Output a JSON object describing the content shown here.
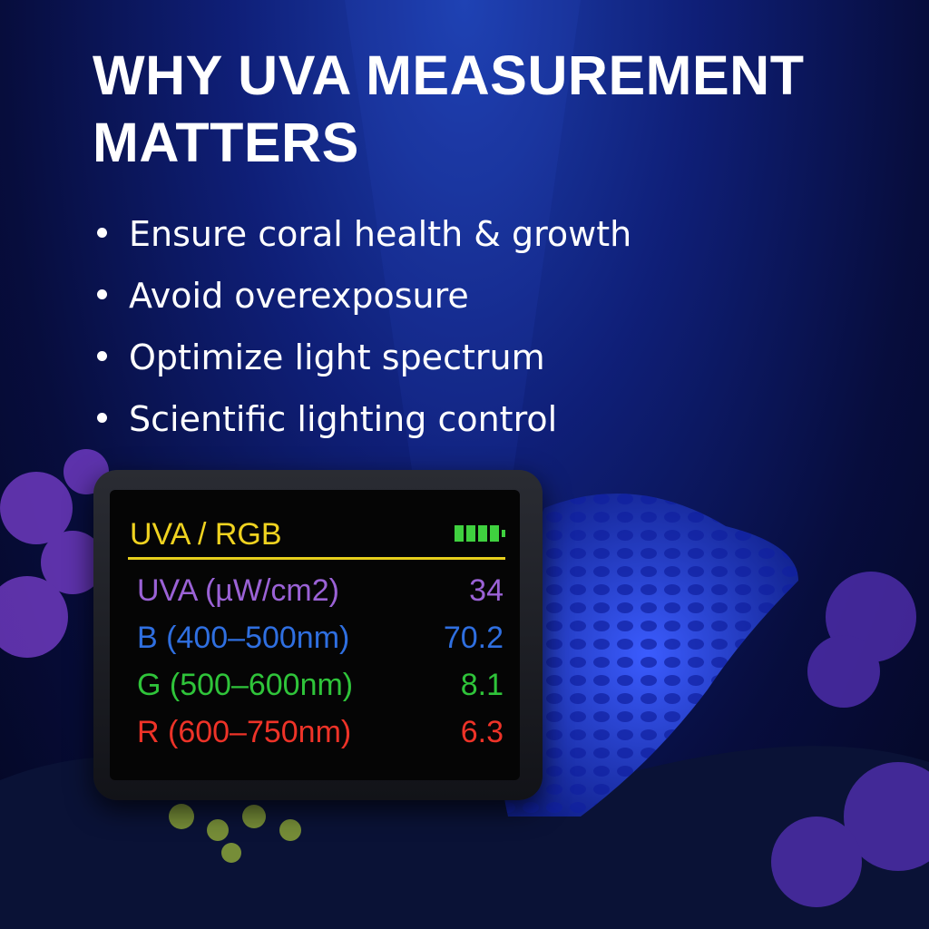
{
  "title": "WHY UVA MEASUREMENT MATTERS",
  "bullets": [
    "Ensure coral health & growth",
    "Avoid overexposure",
    "Optimize light spectrum",
    "Scientific lighting control"
  ],
  "device": {
    "header": "UVA / RGB",
    "rows": [
      {
        "label": "UVA  (µW/cm2)",
        "value": "34",
        "color": "#9b62d6"
      },
      {
        "label": "B (400–500nm)",
        "value": "70.2",
        "color": "#2f6fe0"
      },
      {
        "label": "G (500–600nm)",
        "value": "8.1",
        "color": "#2fc43a"
      },
      {
        "label": "R (600–750nm)",
        "value": "6.3",
        "color": "#ee3328"
      }
    ]
  }
}
